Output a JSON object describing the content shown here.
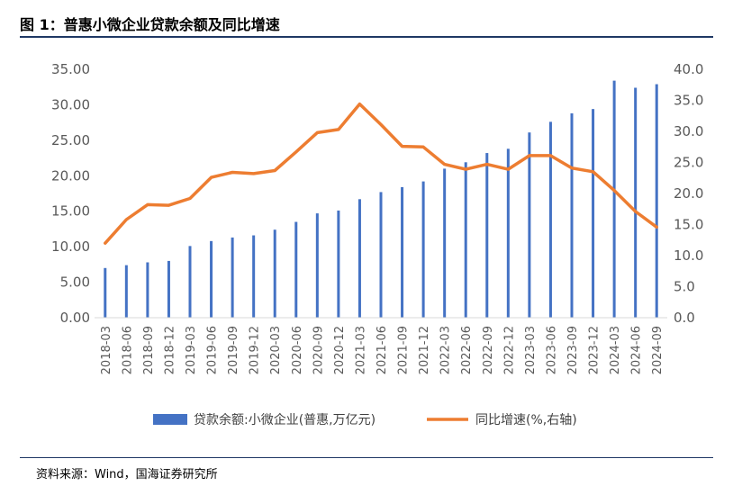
{
  "figure": {
    "title": "图 1：普惠小微企业贷款余额及同比增速",
    "source": "资料来源：Wind，国海证券研究所"
  },
  "chart_data": {
    "type": "bar+line",
    "categories": [
      "2018-03",
      "2018-06",
      "2018-09",
      "2018-12",
      "2019-03",
      "2019-06",
      "2019-09",
      "2019-12",
      "2020-03",
      "2020-06",
      "2020-09",
      "2020-12",
      "2021-03",
      "2021-06",
      "2021-09",
      "2021-12",
      "2022-03",
      "2022-06",
      "2022-09",
      "2022-12",
      "2023-03",
      "2023-06",
      "2023-09",
      "2023-12",
      "2024-03",
      "2024-06",
      "2024-09"
    ],
    "series": [
      {
        "name": "贷款余额:小微企业(普惠,万亿元)",
        "type": "bar",
        "axis": "left",
        "color": "#4472c4",
        "values": [
          7.0,
          7.4,
          7.8,
          8.0,
          10.1,
          10.8,
          11.3,
          11.6,
          12.4,
          13.5,
          14.7,
          15.1,
          16.7,
          17.7,
          18.4,
          19.2,
          21.0,
          21.9,
          23.2,
          23.8,
          26.1,
          27.6,
          28.8,
          29.4,
          33.4,
          32.4,
          32.9
        ]
      },
      {
        "name": "同比增速(%,右轴)",
        "type": "line",
        "axis": "right",
        "color": "#ed7d31",
        "values": [
          12.0,
          15.8,
          18.2,
          18.1,
          19.2,
          22.6,
          23.4,
          23.2,
          23.7,
          26.7,
          29.8,
          30.3,
          34.4,
          31.1,
          27.6,
          27.5,
          24.7,
          23.9,
          24.7,
          23.9,
          26.1,
          26.1,
          24.1,
          23.5,
          20.5,
          17.1,
          14.6
        ]
      }
    ],
    "left_axis": {
      "min": 0,
      "max": 35,
      "ticks": [
        "0.00",
        "5.00",
        "10.00",
        "15.00",
        "20.00",
        "25.00",
        "30.00",
        "35.00"
      ]
    },
    "right_axis": {
      "min": 0,
      "max": 40,
      "ticks": [
        "0.0",
        "5.0",
        "10.0",
        "15.0",
        "20.0",
        "25.0",
        "30.0",
        "35.0",
        "40.0"
      ]
    },
    "legend_position": "bottom",
    "grid": false
  }
}
